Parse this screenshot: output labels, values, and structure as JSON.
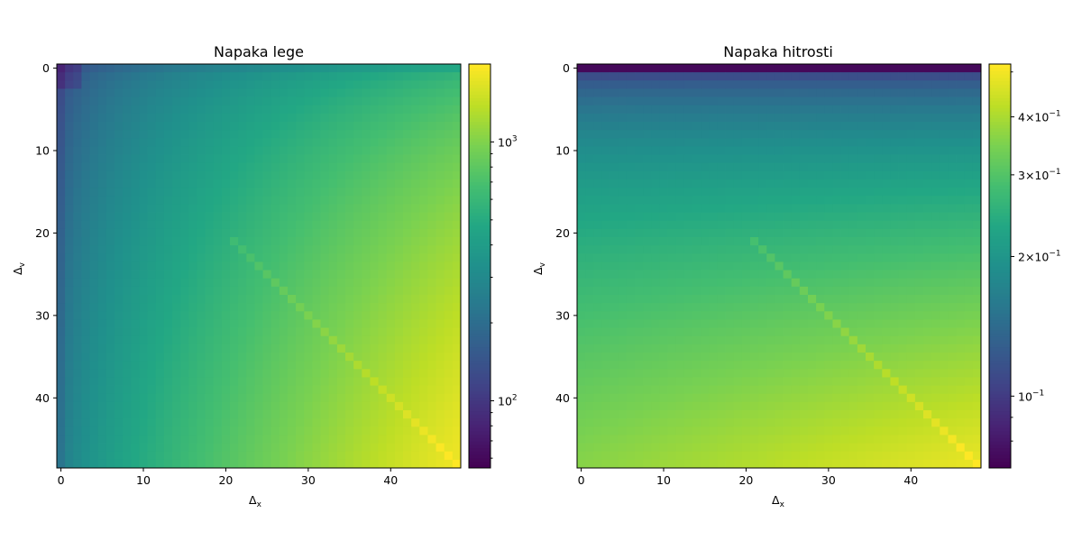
{
  "chart_data": [
    {
      "type": "heatmap",
      "title": "Napaka lege",
      "xlabel": "Δ",
      "xlabel_sub": "x",
      "ylabel": "Δ",
      "ylabel_sub": "v",
      "n": 49,
      "xlim": [
        -0.5,
        48.5
      ],
      "ylim": [
        48.5,
        -0.5
      ],
      "xticks": [
        0,
        10,
        20,
        30,
        40
      ],
      "yticks": [
        0,
        10,
        20,
        30,
        40
      ],
      "colorbar": {
        "scale": "log",
        "vmin": 55,
        "vmax": 2000,
        "major_ticks": [
          {
            "value": 100,
            "base": "10",
            "exp": "2"
          },
          {
            "value": 1000,
            "base": "10",
            "exp": "3"
          }
        ],
        "minor_ticks": [
          60,
          70,
          80,
          90,
          200,
          300,
          400,
          500,
          600,
          700,
          800,
          900
        ]
      },
      "colormap": "viridis",
      "model": {
        "description_values": "log10 error grows from ~55 at (0,0) to ~2000 at (48,48), with diagonal ridge",
        "corner_values": {
          "top_left": 55,
          "top_right": 250,
          "bottom_left": 240,
          "bottom_right": 1900
        }
      }
    },
    {
      "type": "heatmap",
      "title": "Napaka hitrosti",
      "xlabel": "Δ",
      "xlabel_sub": "x",
      "ylabel": "Δ",
      "ylabel_sub": "v",
      "n": 49,
      "xlim": [
        -0.5,
        48.5
      ],
      "ylim": [
        48.5,
        -0.5
      ],
      "xticks": [
        0,
        10,
        20,
        30,
        40
      ],
      "yticks": [
        0,
        10,
        20,
        30,
        40
      ],
      "colorbar": {
        "scale": "log",
        "vmin": 0.07,
        "vmax": 0.52,
        "major_ticks": [
          {
            "value": 0.1,
            "base": "10",
            "exp": "−1",
            "prefix": ""
          },
          {
            "value": 0.2,
            "base": "10",
            "exp": "−1",
            "prefix": "2×"
          },
          {
            "value": 0.3,
            "base": "10",
            "exp": "−1",
            "prefix": "3×"
          },
          {
            "value": 0.4,
            "base": "10",
            "exp": "−1",
            "prefix": "4×"
          }
        ],
        "minor_ticks": [
          0.08,
          0.09,
          0.5
        ]
      },
      "colormap": "viridis",
      "model": {
        "corner_values": {
          "top_left": 0.07,
          "top_right": 0.07,
          "bottom_left": 0.38,
          "bottom_right": 0.52
        }
      }
    }
  ]
}
